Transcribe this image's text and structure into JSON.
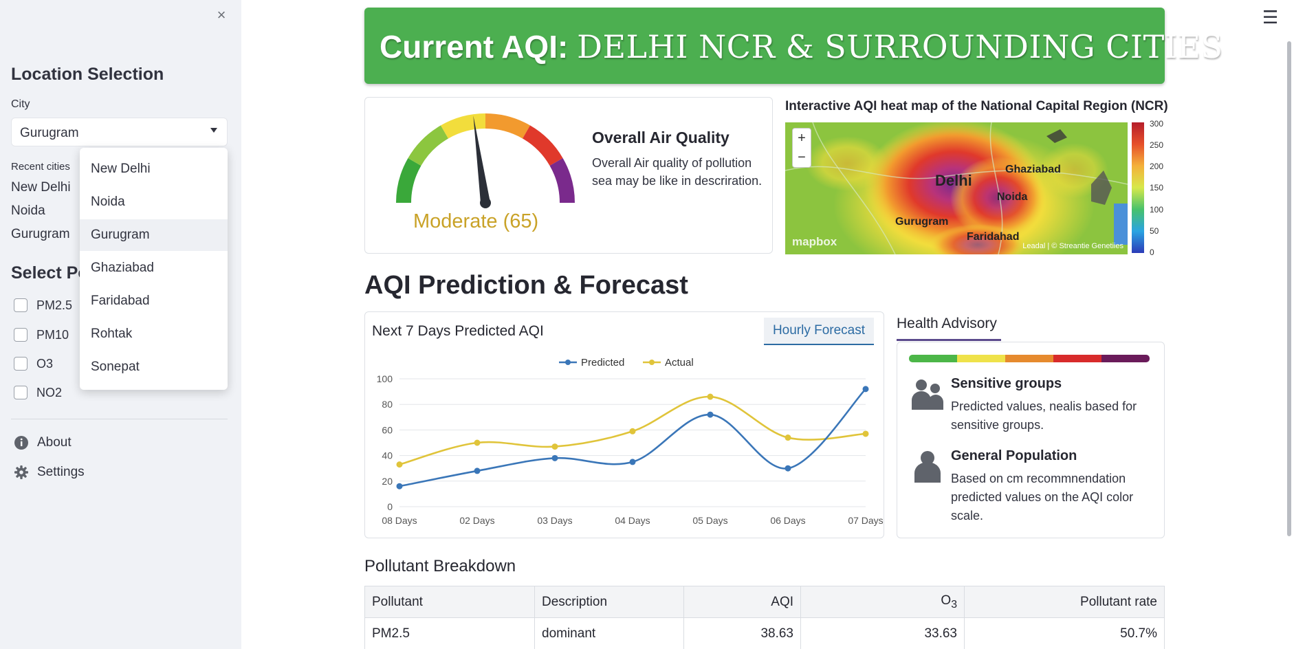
{
  "sidebar": {
    "close": "×",
    "location_title": "Location Selection",
    "city_label": "City",
    "city_value": "Gurugram",
    "recent_label": "Recent cities",
    "recent": [
      "New Delhi",
      "Noida",
      "Gurugram"
    ],
    "pollutant_title": "Select Po",
    "pollutants": [
      "PM2.5",
      "PM10",
      "O3",
      "NO2"
    ],
    "about_label": "About",
    "settings_label": "Settings"
  },
  "dropdown": {
    "options": [
      "New Delhi",
      "Noida",
      "Gurugram",
      "Ghaziabad",
      "Faridabad",
      "Rohtak",
      "Sonepat"
    ],
    "selected": "Gurugram"
  },
  "menu_icon": "☰",
  "banner": {
    "prefix": "Current AQI: ",
    "title": "DELHI NCR & SURROUNDING CITIES",
    "color": "#4caf50"
  },
  "gauge": {
    "label": "Moderate (65)",
    "value": 65,
    "scale_max": 300,
    "value_color": "#c9a227",
    "band_colors": [
      "#3aa83a",
      "#8cc63f",
      "#f2dd3c",
      "#f29a2e",
      "#e0392b",
      "#7a2a8c"
    ]
  },
  "air_quality": {
    "title": "Overall Air Quality",
    "description": "Overall Air quality of pollution sea may be like in descriration."
  },
  "map": {
    "title": "Interactive AQI heat map of the National Capital Region (NCR)",
    "zoom_in": "+",
    "zoom_out": "−",
    "cities": {
      "delhi": "Delhi",
      "ghaziabad": "Ghaziabad",
      "noida": "Noida",
      "gurugram": "Gurugram",
      "faridabad": "Faridahad"
    },
    "logo": "mapbox",
    "attribution": "Leadal | © Streantie Genetiies",
    "legend_ticks": [
      "300",
      "250",
      "200",
      "150",
      "100",
      "50",
      "0"
    ]
  },
  "forecast": {
    "section_title": "AQI Prediction & Forecast",
    "chart_title": "Next 7 Days Predicted AQI",
    "tab_label": "Hourly Forecast"
  },
  "chart_data": {
    "type": "line",
    "categories": [
      "08 Days",
      "02 Days",
      "03 Days",
      "04 Days",
      "05 Days",
      "06 Days",
      "07 Days"
    ],
    "series": [
      {
        "name": "Predicted",
        "values": [
          16,
          28,
          38,
          35,
          72,
          30,
          92
        ],
        "color": "#3a76b8"
      },
      {
        "name": "Actual",
        "values": [
          33,
          50,
          47,
          59,
          86,
          54,
          57
        ],
        "color": "#e0c43a"
      }
    ],
    "yticks": [
      0,
      20,
      40,
      60,
      80,
      100
    ],
    "ylim": [
      0,
      100
    ],
    "grid": true,
    "legend": "top-center"
  },
  "advisory": {
    "tab": "Health Advisory",
    "strip_colors": [
      "#4cb648",
      "#efe24a",
      "#e68a2e",
      "#d82b2b",
      "#6a1b5a"
    ],
    "items": [
      {
        "title": "Sensitive groups",
        "text": "Predicted values, nealis based for sensitive groups.",
        "icon": "group-icon"
      },
      {
        "title": "General Population",
        "text": "Based on cm recommnendation predicted values on the AQI color scale.",
        "icon": "person-icon"
      }
    ]
  },
  "breakdown": {
    "title": "Pollutant Breakdown",
    "headers": [
      "Pollutant",
      "Description",
      "AQI",
      "O",
      "Pollutant rate"
    ],
    "o3_sub": "3",
    "rows": [
      [
        "PM2.5",
        "dominant",
        "38.63",
        "33.63",
        "50.7%"
      ]
    ]
  }
}
